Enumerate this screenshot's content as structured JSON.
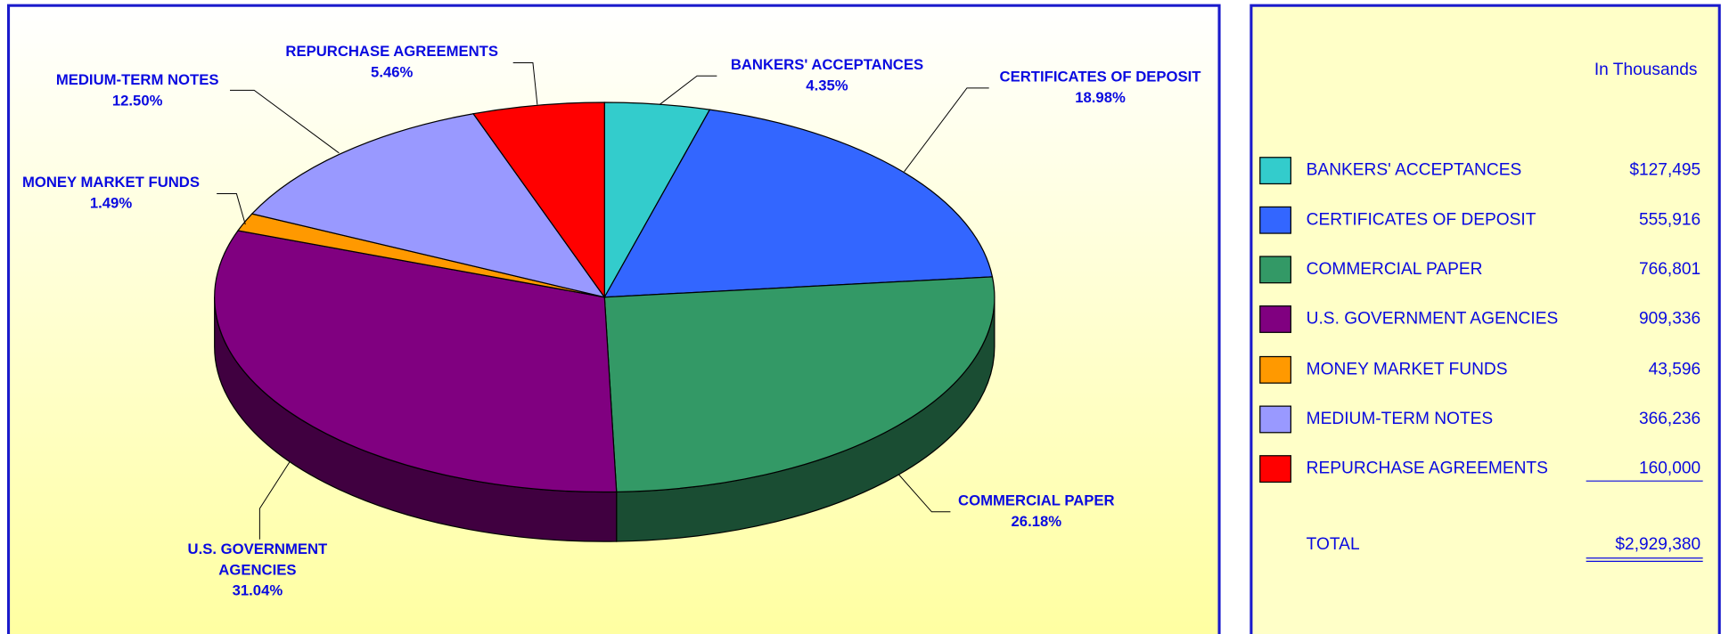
{
  "chart_data": {
    "type": "pie",
    "categories": [
      "BANKERS' ACCEPTANCES",
      "CERTIFICATES OF DEPOSIT",
      "COMMERCIAL PAPER",
      "U.S. GOVERNMENT AGENCIES",
      "MONEY MARKET FUNDS",
      "MEDIUM-TERM NOTES",
      "REPURCHASE AGREEMENTS"
    ],
    "values": [
      4.35,
      18.98,
      26.18,
      31.04,
      1.49,
      12.5,
      5.46
    ],
    "value_labels": [
      "4.35%",
      "18.98%",
      "26.18%",
      "31.04%",
      "1.49%",
      "12.50%",
      "5.46%"
    ],
    "colors": [
      "#33cccc",
      "#3366ff",
      "#339966",
      "#800080",
      "#ff9900",
      "#9999ff",
      "#ff0000"
    ],
    "unit_note": "In Thousands",
    "amounts": [
      "$127,495",
      "555,916",
      "766,801",
      "909,336",
      "43,596",
      "366,236",
      "160,000"
    ],
    "total_label": "TOTAL",
    "total": "$2,929,380"
  }
}
